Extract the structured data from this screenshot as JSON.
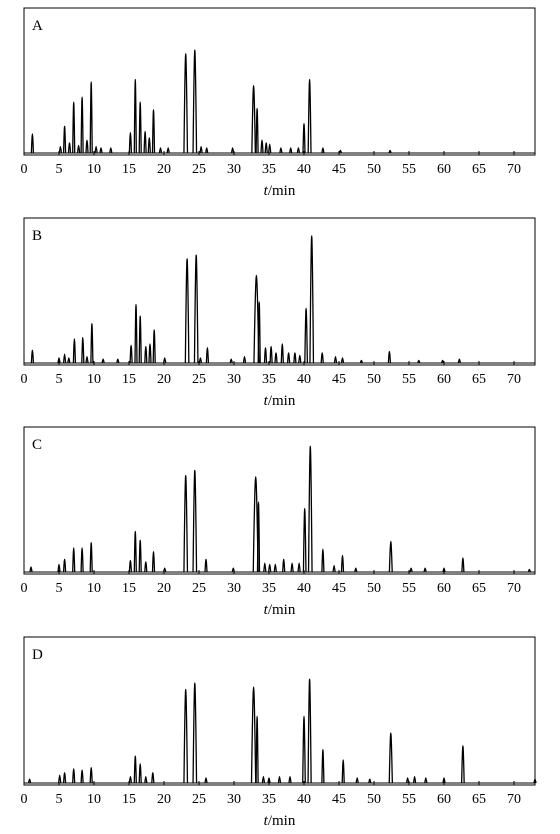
{
  "chart_data": [
    {
      "type": "line",
      "panel_label": "A",
      "xlabel_var": "t",
      "xlabel_unit": "/min",
      "xlim": [
        0,
        73
      ],
      "ylim": [
        0,
        100
      ],
      "xticks": [
        0,
        5,
        10,
        15,
        20,
        25,
        30,
        35,
        40,
        45,
        50,
        55,
        60,
        65,
        70
      ],
      "grid": false,
      "color": "#000000",
      "peaks": [
        {
          "rt": 1.2,
          "h": 15,
          "w": 0.12
        },
        {
          "rt": 5.2,
          "h": 5,
          "w": 0.1
        },
        {
          "rt": 5.8,
          "h": 21,
          "w": 0.12
        },
        {
          "rt": 6.5,
          "h": 8,
          "w": 0.1
        },
        {
          "rt": 7.1,
          "h": 40,
          "w": 0.12
        },
        {
          "rt": 7.8,
          "h": 6,
          "w": 0.1
        },
        {
          "rt": 8.3,
          "h": 44,
          "w": 0.12
        },
        {
          "rt": 9.0,
          "h": 10,
          "w": 0.1
        },
        {
          "rt": 9.6,
          "h": 56,
          "w": 0.13
        },
        {
          "rt": 10.3,
          "h": 5,
          "w": 0.1
        },
        {
          "rt": 11.0,
          "h": 4,
          "w": 0.1
        },
        {
          "rt": 12.4,
          "h": 4,
          "w": 0.1
        },
        {
          "rt": 15.2,
          "h": 16,
          "w": 0.12
        },
        {
          "rt": 15.9,
          "h": 58,
          "w": 0.13
        },
        {
          "rt": 16.6,
          "h": 40,
          "w": 0.12
        },
        {
          "rt": 17.3,
          "h": 17,
          "w": 0.12
        },
        {
          "rt": 17.9,
          "h": 12,
          "w": 0.1
        },
        {
          "rt": 18.5,
          "h": 34,
          "w": 0.12
        },
        {
          "rt": 19.5,
          "h": 4,
          "w": 0.1
        },
        {
          "rt": 20.6,
          "h": 4,
          "w": 0.1
        },
        {
          "rt": 23.1,
          "h": 78,
          "w": 0.25
        },
        {
          "rt": 24.4,
          "h": 81,
          "w": 0.25
        },
        {
          "rt": 25.3,
          "h": 5,
          "w": 0.1
        },
        {
          "rt": 26.1,
          "h": 4,
          "w": 0.1
        },
        {
          "rt": 29.8,
          "h": 4,
          "w": 0.1
        },
        {
          "rt": 32.8,
          "h": 53,
          "w": 0.25
        },
        {
          "rt": 33.3,
          "h": 35,
          "w": 0.12
        },
        {
          "rt": 34.0,
          "h": 10,
          "w": 0.1
        },
        {
          "rt": 34.6,
          "h": 8,
          "w": 0.1
        },
        {
          "rt": 35.1,
          "h": 7,
          "w": 0.1
        },
        {
          "rt": 36.7,
          "h": 4,
          "w": 0.1
        },
        {
          "rt": 38.1,
          "h": 4,
          "w": 0.1
        },
        {
          "rt": 39.2,
          "h": 4,
          "w": 0.1
        },
        {
          "rt": 40.0,
          "h": 23,
          "w": 0.14
        },
        {
          "rt": 40.8,
          "h": 58,
          "w": 0.2
        },
        {
          "rt": 42.7,
          "h": 4,
          "w": 0.1
        },
        {
          "rt": 45.2,
          "h": 2,
          "w": 0.1
        },
        {
          "rt": 52.3,
          "h": 2,
          "w": 0.1
        }
      ]
    },
    {
      "type": "line",
      "panel_label": "B",
      "xlabel_var": "t",
      "xlabel_unit": "/min",
      "xlim": [
        0,
        73
      ],
      "ylim": [
        0,
        100
      ],
      "xticks": [
        0,
        5,
        10,
        15,
        20,
        25,
        30,
        35,
        40,
        45,
        50,
        55,
        60,
        65,
        70
      ],
      "grid": false,
      "color": "#000000",
      "peaks": [
        {
          "rt": 1.2,
          "h": 10,
          "w": 0.12
        },
        {
          "rt": 5.0,
          "h": 4,
          "w": 0.1
        },
        {
          "rt": 5.8,
          "h": 7,
          "w": 0.12
        },
        {
          "rt": 6.4,
          "h": 4,
          "w": 0.1
        },
        {
          "rt": 7.2,
          "h": 19,
          "w": 0.12
        },
        {
          "rt": 8.4,
          "h": 20,
          "w": 0.12
        },
        {
          "rt": 9.0,
          "h": 5,
          "w": 0.1
        },
        {
          "rt": 9.7,
          "h": 31,
          "w": 0.13
        },
        {
          "rt": 11.3,
          "h": 3,
          "w": 0.1
        },
        {
          "rt": 13.4,
          "h": 3,
          "w": 0.1
        },
        {
          "rt": 15.3,
          "h": 14,
          "w": 0.12
        },
        {
          "rt": 16.0,
          "h": 46,
          "w": 0.13
        },
        {
          "rt": 16.6,
          "h": 37,
          "w": 0.12
        },
        {
          "rt": 17.4,
          "h": 13,
          "w": 0.12
        },
        {
          "rt": 18.0,
          "h": 15,
          "w": 0.1
        },
        {
          "rt": 18.6,
          "h": 26,
          "w": 0.12
        },
        {
          "rt": 20.1,
          "h": 4,
          "w": 0.1
        },
        {
          "rt": 23.3,
          "h": 82,
          "w": 0.25
        },
        {
          "rt": 24.6,
          "h": 85,
          "w": 0.25
        },
        {
          "rt": 25.2,
          "h": 4,
          "w": 0.1
        },
        {
          "rt": 26.2,
          "h": 12,
          "w": 0.1
        },
        {
          "rt": 29.6,
          "h": 3,
          "w": 0.1
        },
        {
          "rt": 31.5,
          "h": 5,
          "w": 0.1
        },
        {
          "rt": 33.2,
          "h": 69,
          "w": 0.35
        },
        {
          "rt": 33.6,
          "h": 48,
          "w": 0.12
        },
        {
          "rt": 34.5,
          "h": 12,
          "w": 0.1
        },
        {
          "rt": 35.3,
          "h": 13,
          "w": 0.1
        },
        {
          "rt": 36.0,
          "h": 8,
          "w": 0.1
        },
        {
          "rt": 36.9,
          "h": 15,
          "w": 0.1
        },
        {
          "rt": 37.8,
          "h": 8,
          "w": 0.1
        },
        {
          "rt": 38.7,
          "h": 8,
          "w": 0.1
        },
        {
          "rt": 39.4,
          "h": 6,
          "w": 0.1
        },
        {
          "rt": 40.3,
          "h": 43,
          "w": 0.18
        },
        {
          "rt": 41.1,
          "h": 100,
          "w": 0.25
        },
        {
          "rt": 42.6,
          "h": 8,
          "w": 0.1
        },
        {
          "rt": 44.5,
          "h": 5,
          "w": 0.1
        },
        {
          "rt": 45.5,
          "h": 4,
          "w": 0.1
        },
        {
          "rt": 48.2,
          "h": 2,
          "w": 0.1
        },
        {
          "rt": 52.2,
          "h": 9,
          "w": 0.12
        },
        {
          "rt": 56.4,
          "h": 2,
          "w": 0.1
        },
        {
          "rt": 59.8,
          "h": 2,
          "w": 0.1
        },
        {
          "rt": 62.2,
          "h": 3,
          "w": 0.1
        }
      ]
    },
    {
      "type": "line",
      "panel_label": "C",
      "xlabel_var": "t",
      "xlabel_unit": "/min",
      "xlim": [
        0,
        73
      ],
      "ylim": [
        0,
        100
      ],
      "xticks": [
        0,
        5,
        10,
        15,
        20,
        25,
        30,
        35,
        40,
        45,
        50,
        55,
        60,
        65,
        70
      ],
      "grid": false,
      "color": "#000000",
      "peaks": [
        {
          "rt": 1.0,
          "h": 4,
          "w": 0.12
        },
        {
          "rt": 5.0,
          "h": 6,
          "w": 0.1
        },
        {
          "rt": 5.8,
          "h": 10,
          "w": 0.12
        },
        {
          "rt": 7.1,
          "h": 19,
          "w": 0.12
        },
        {
          "rt": 8.3,
          "h": 19,
          "w": 0.12
        },
        {
          "rt": 9.6,
          "h": 23,
          "w": 0.13
        },
        {
          "rt": 15.2,
          "h": 9,
          "w": 0.12
        },
        {
          "rt": 15.9,
          "h": 32,
          "w": 0.13
        },
        {
          "rt": 16.6,
          "h": 25,
          "w": 0.12
        },
        {
          "rt": 17.4,
          "h": 8,
          "w": 0.12
        },
        {
          "rt": 18.5,
          "h": 16,
          "w": 0.12
        },
        {
          "rt": 20.1,
          "h": 3,
          "w": 0.1
        },
        {
          "rt": 23.1,
          "h": 76,
          "w": 0.25
        },
        {
          "rt": 24.4,
          "h": 80,
          "w": 0.25
        },
        {
          "rt": 26.0,
          "h": 10,
          "w": 0.1
        },
        {
          "rt": 29.9,
          "h": 3,
          "w": 0.1
        },
        {
          "rt": 33.1,
          "h": 75,
          "w": 0.35
        },
        {
          "rt": 33.5,
          "h": 55,
          "w": 0.12
        },
        {
          "rt": 34.4,
          "h": 7,
          "w": 0.1
        },
        {
          "rt": 35.1,
          "h": 6,
          "w": 0.1
        },
        {
          "rt": 35.9,
          "h": 6,
          "w": 0.1
        },
        {
          "rt": 37.1,
          "h": 10,
          "w": 0.1
        },
        {
          "rt": 38.3,
          "h": 7,
          "w": 0.1
        },
        {
          "rt": 39.3,
          "h": 7,
          "w": 0.1
        },
        {
          "rt": 40.1,
          "h": 50,
          "w": 0.18
        },
        {
          "rt": 40.9,
          "h": 99,
          "w": 0.25
        },
        {
          "rt": 42.7,
          "h": 18,
          "w": 0.12
        },
        {
          "rt": 44.3,
          "h": 5,
          "w": 0.1
        },
        {
          "rt": 45.5,
          "h": 13,
          "w": 0.12
        },
        {
          "rt": 47.4,
          "h": 3,
          "w": 0.1
        },
        {
          "rt": 52.4,
          "h": 24,
          "w": 0.2
        },
        {
          "rt": 55.3,
          "h": 3,
          "w": 0.1
        },
        {
          "rt": 57.3,
          "h": 3,
          "w": 0.1
        },
        {
          "rt": 60.0,
          "h": 3,
          "w": 0.1
        },
        {
          "rt": 62.7,
          "h": 11,
          "w": 0.12
        },
        {
          "rt": 72.2,
          "h": 2,
          "w": 0.1
        }
      ]
    },
    {
      "type": "line",
      "panel_label": "D",
      "xlabel_var": "t",
      "xlabel_unit": "/min",
      "xlim": [
        0,
        73
      ],
      "ylim": [
        0,
        100
      ],
      "xticks": [
        0,
        5,
        10,
        15,
        20,
        25,
        30,
        35,
        40,
        45,
        50,
        55,
        60,
        65,
        70
      ],
      "grid": false,
      "color": "#000000",
      "peaks": [
        {
          "rt": 0.8,
          "h": 3,
          "w": 0.1
        },
        {
          "rt": 5.1,
          "h": 6,
          "w": 0.1
        },
        {
          "rt": 5.8,
          "h": 8,
          "w": 0.12
        },
        {
          "rt": 7.1,
          "h": 11,
          "w": 0.12
        },
        {
          "rt": 8.3,
          "h": 10,
          "w": 0.12
        },
        {
          "rt": 9.6,
          "h": 12,
          "w": 0.13
        },
        {
          "rt": 15.2,
          "h": 5,
          "w": 0.12
        },
        {
          "rt": 15.9,
          "h": 21,
          "w": 0.13
        },
        {
          "rt": 16.6,
          "h": 15,
          "w": 0.12
        },
        {
          "rt": 17.4,
          "h": 5,
          "w": 0.12
        },
        {
          "rt": 18.4,
          "h": 8,
          "w": 0.12
        },
        {
          "rt": 23.1,
          "h": 73,
          "w": 0.25
        },
        {
          "rt": 24.4,
          "h": 78,
          "w": 0.25
        },
        {
          "rt": 26.0,
          "h": 4,
          "w": 0.1
        },
        {
          "rt": 32.8,
          "h": 75,
          "w": 0.3
        },
        {
          "rt": 33.3,
          "h": 52,
          "w": 0.12
        },
        {
          "rt": 34.2,
          "h": 5,
          "w": 0.1
        },
        {
          "rt": 35.0,
          "h": 4,
          "w": 0.1
        },
        {
          "rt": 36.5,
          "h": 5,
          "w": 0.1
        },
        {
          "rt": 38.0,
          "h": 5,
          "w": 0.1
        },
        {
          "rt": 40.0,
          "h": 52,
          "w": 0.18
        },
        {
          "rt": 40.8,
          "h": 81,
          "w": 0.22
        },
        {
          "rt": 42.7,
          "h": 26,
          "w": 0.12
        },
        {
          "rt": 45.6,
          "h": 18,
          "w": 0.12
        },
        {
          "rt": 47.6,
          "h": 4,
          "w": 0.1
        },
        {
          "rt": 49.4,
          "h": 3,
          "w": 0.1
        },
        {
          "rt": 52.4,
          "h": 39,
          "w": 0.22
        },
        {
          "rt": 54.8,
          "h": 4,
          "w": 0.1
        },
        {
          "rt": 55.8,
          "h": 5,
          "w": 0.1
        },
        {
          "rt": 57.4,
          "h": 4,
          "w": 0.1
        },
        {
          "rt": 60.0,
          "h": 4,
          "w": 0.1
        },
        {
          "rt": 62.7,
          "h": 29,
          "w": 0.18
        },
        {
          "rt": 73.0,
          "h": 3,
          "w": 0.1
        }
      ]
    }
  ]
}
